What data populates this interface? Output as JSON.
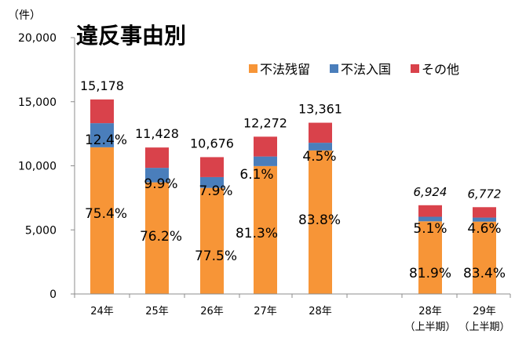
{
  "chart_data": {
    "type": "bar",
    "stacked": true,
    "title": "違反事由別",
    "ylabel": "（件）",
    "ylim": [
      0,
      20000
    ],
    "yticks": [
      "0",
      "5,000",
      "10,000",
      "15,000",
      "20,000"
    ],
    "grid": false,
    "legend_position": "top-right",
    "categories": [
      {
        "label": "24年",
        "sub": ""
      },
      {
        "label": "25年",
        "sub": ""
      },
      {
        "label": "26年",
        "sub": ""
      },
      {
        "label": "27年",
        "sub": ""
      },
      {
        "label": "28年",
        "sub": ""
      },
      {
        "label": "28年",
        "sub": "（上半期）"
      },
      {
        "label": "29年",
        "sub": "（上半期）"
      }
    ],
    "totals": [
      15178,
      11428,
      10676,
      12272,
      13361,
      6924,
      6772
    ],
    "total_labels": [
      "15,178",
      "11,428",
      "10,676",
      "12,272",
      "13,361",
      "6,924",
      "6,772"
    ],
    "series": [
      {
        "name": "不法残留",
        "color": "#F79537",
        "percents": [
          75.4,
          76.2,
          77.5,
          81.3,
          83.8,
          81.9,
          83.4
        ],
        "labels": [
          "75.4%",
          "76.2%",
          "77.5%",
          "81.3%",
          "83.8%",
          "81.9%",
          "83.4%"
        ]
      },
      {
        "name": "不法入国",
        "color": "#4A7EBB",
        "percents": [
          12.4,
          9.9,
          7.9,
          6.1,
          4.5,
          5.1,
          4.6
        ],
        "labels": [
          "12.4%",
          "9.9%",
          "7.9%",
          "6.1%",
          "4.5%",
          "5.1%",
          "4.6%"
        ]
      },
      {
        "name": "その他",
        "color": "#D9424B",
        "percents": [
          12.2,
          13.9,
          14.6,
          12.6,
          11.7,
          13.0,
          12.0
        ],
        "labels": []
      }
    ]
  }
}
